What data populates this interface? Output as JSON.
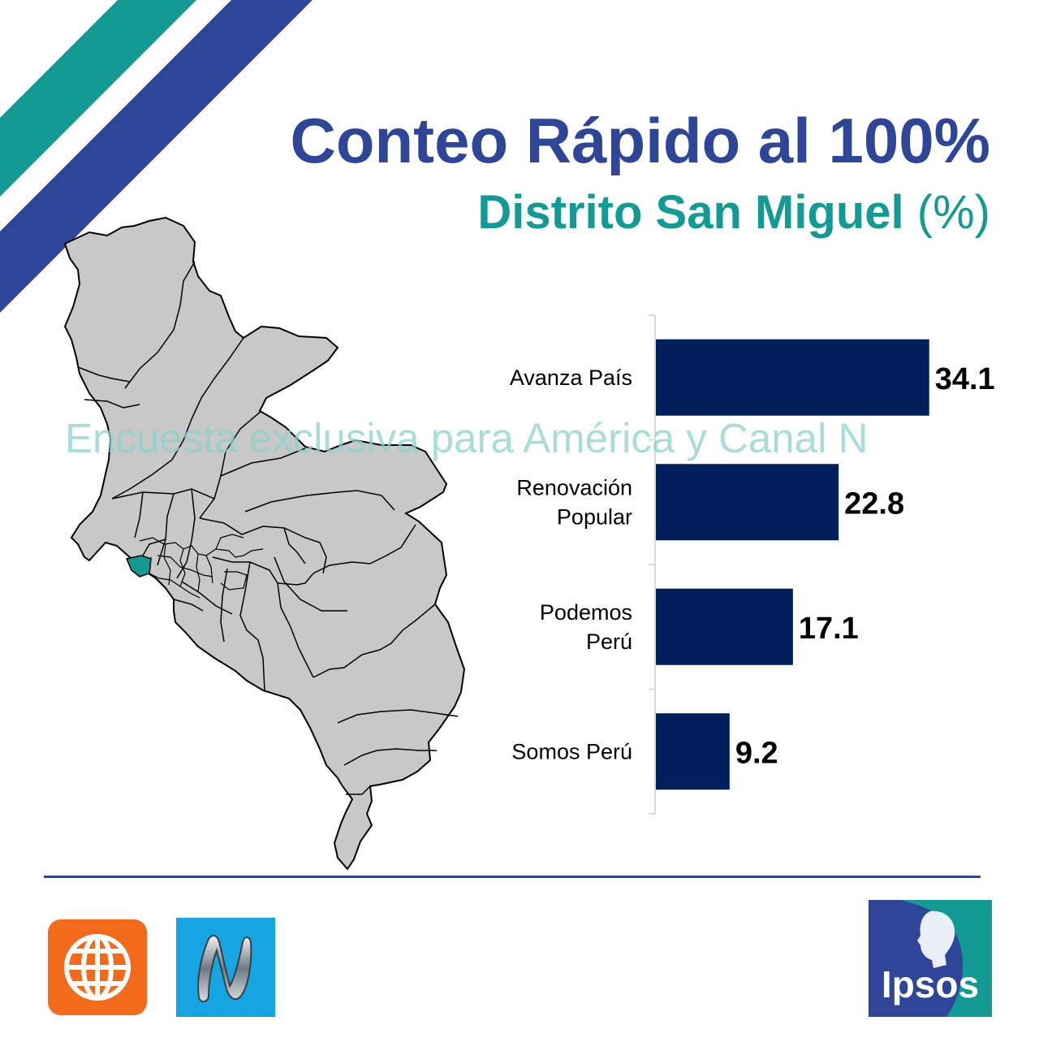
{
  "header": {
    "title": "Conteo Rápido al 100%",
    "subtitle_main": "Distrito San Miguel",
    "subtitle_unit": "(%)"
  },
  "watermark": "Encuesta exclusiva para América y Canal N",
  "colors": {
    "title": "#2e4598",
    "subtitle": "#149a94",
    "bar": "#001f5b",
    "map_fill": "#c8c8c8",
    "map_highlight": "#149a94",
    "stripe_teal": "#149a94",
    "stripe_blue": "#2e4598"
  },
  "map": {
    "highlighted_district": "San Miguel"
  },
  "chart_data": {
    "type": "bar",
    "orientation": "horizontal",
    "categories": [
      [
        "Avanza País"
      ],
      [
        "Renovación",
        "Popular"
      ],
      [
        "Podemos",
        "Perú"
      ],
      [
        "Somos Perú"
      ]
    ],
    "values": [
      34.1,
      22.8,
      17.1,
      9.2
    ],
    "value_labels": [
      "34.1",
      "22.8",
      "17.1",
      "9.2"
    ],
    "xlim": [
      0,
      40
    ],
    "grid": false,
    "legend": "none",
    "title": "",
    "xlabel": "",
    "ylabel": ""
  },
  "logos": {
    "left": [
      "america-tv-logo",
      "canal-n-logo"
    ],
    "right": "ipsos-logo",
    "ipsos_text": "Ipsos"
  }
}
